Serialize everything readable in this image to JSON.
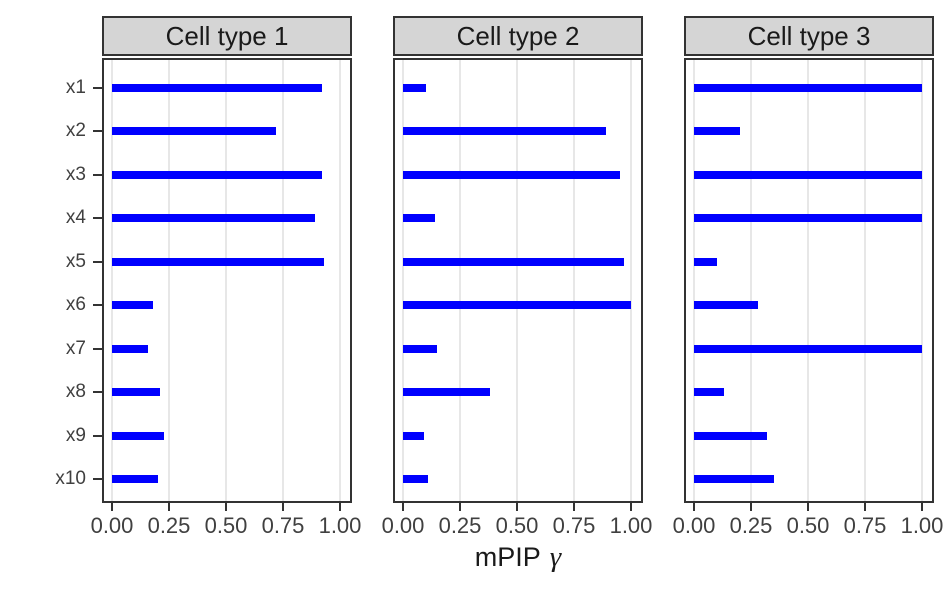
{
  "chart_data": {
    "type": "bar",
    "orientation": "horizontal",
    "title": "",
    "xlabel_text": "mPIP",
    "xlabel_symbol": "γ",
    "ylabel": "",
    "categories": [
      "x1",
      "x2",
      "x3",
      "x4",
      "x5",
      "x6",
      "x7",
      "x8",
      "x9",
      "x10"
    ],
    "facets": [
      {
        "label": "Cell type 1",
        "values": [
          0.92,
          0.72,
          0.92,
          0.89,
          0.93,
          0.18,
          0.16,
          0.21,
          0.23,
          0.2
        ]
      },
      {
        "label": "Cell type 2",
        "values": [
          0.1,
          0.89,
          0.95,
          0.14,
          0.97,
          1.0,
          0.15,
          0.38,
          0.09,
          0.11
        ]
      },
      {
        "label": "Cell type 3",
        "values": [
          1.0,
          0.2,
          1.0,
          1.0,
          0.1,
          0.28,
          1.0,
          0.13,
          0.32,
          0.35
        ]
      }
    ],
    "x_ticks": [
      {
        "value": 0,
        "label": "0.00"
      },
      {
        "value": 0.25,
        "label": "0.25"
      },
      {
        "value": 0.5,
        "label": "0.50"
      },
      {
        "value": 0.75,
        "label": "0.75"
      },
      {
        "value": 1,
        "label": "1.00"
      }
    ],
    "xlim": [
      0,
      1
    ],
    "grid": "vertical-major-only",
    "legend": "none",
    "colors": {
      "bar": "#0000FF",
      "strip_bg": "#D5D5D5",
      "strip_border": "#333333",
      "panel_border": "#333333",
      "gridline": "#E7E7E7",
      "tick": "#333333",
      "tick_label": "#404040",
      "strip_text": "#1A1A1A",
      "axis_title": "#1A1A1A",
      "background": "#FFFFFF"
    }
  }
}
